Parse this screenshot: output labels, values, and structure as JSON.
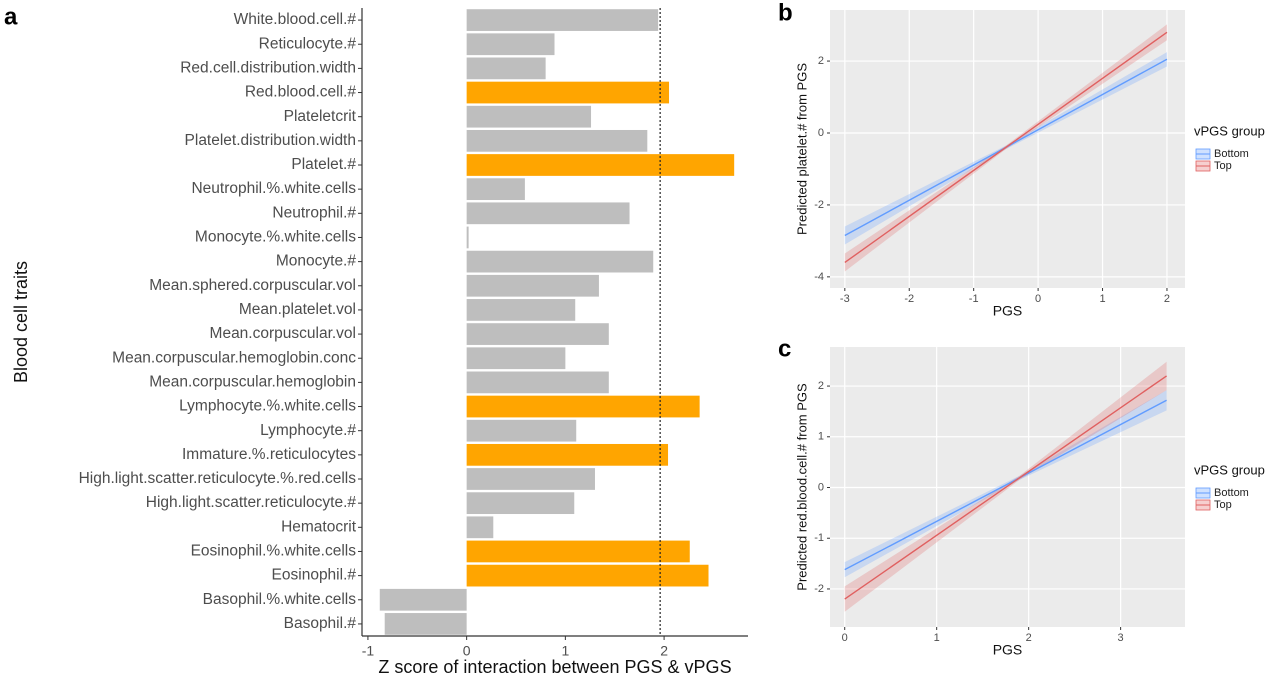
{
  "chart_data": [
    {
      "type": "bar",
      "orientation": "horizontal",
      "panel_label": "a",
      "xlabel": "Z score of interaction between PGS & vPGS",
      "ylabel": "Blood cell traits",
      "categories": [
        "White.blood.cell.#",
        "Reticulocyte.#",
        "Red.cell.distribution.width",
        "Red.blood.cell.#",
        "Plateletcrit",
        "Platelet.distribution.width",
        "Platelet.#",
        "Neutrophil.%.white.cells",
        "Neutrophil.#",
        "Monocyte.%.white.cells",
        "Monocyte.#",
        "Mean.sphered.corpuscular.vol",
        "Mean.platelet.vol",
        "Mean.corpuscular.vol",
        "Mean.corpuscular.hemoglobin.conc",
        "Mean.corpuscular.hemoglobin",
        "Lymphocyte.%.white.cells",
        "Lymphocyte.#",
        "Immature.%.reticulocytes",
        "High.light.scatter.reticulocyte.%.red.cells",
        "High.light.scatter.reticulocyte.#",
        "Hematocrit",
        "Eosinophil.%.white.cells",
        "Eosinophil.#",
        "Basophil.%.white.cells",
        "Basophil.#"
      ],
      "values": [
        1.94,
        0.89,
        0.8,
        2.05,
        1.26,
        1.83,
        2.71,
        0.59,
        1.65,
        0.02,
        1.89,
        1.34,
        1.1,
        1.44,
        1.0,
        1.44,
        2.36,
        1.11,
        2.04,
        1.3,
        1.09,
        0.27,
        2.26,
        2.45,
        -0.88,
        -0.83
      ],
      "colors": [
        "#bebebe",
        "#bebebe",
        "#bebebe",
        "#ffa500",
        "#bebebe",
        "#bebebe",
        "#ffa500",
        "#bebebe",
        "#bebebe",
        "#bebebe",
        "#bebebe",
        "#bebebe",
        "#bebebe",
        "#bebebe",
        "#bebebe",
        "#bebebe",
        "#ffa500",
        "#bebebe",
        "#ffa500",
        "#bebebe",
        "#bebebe",
        "#bebebe",
        "#ffa500",
        "#ffa500",
        "#bebebe",
        "#bebebe"
      ],
      "reference_line": 1.96,
      "xlim": [
        -1.06,
        2.85
      ],
      "xticks": [
        -1,
        0,
        1,
        2
      ]
    },
    {
      "type": "line",
      "panel_label": "b",
      "xlabel": "PGS",
      "ylabel": "Predicted platelet.# from PGS",
      "legend_title": "vPGS group",
      "x": [
        -3,
        -0.5,
        2
      ],
      "series": [
        {
          "name": "Bottom",
          "color": "#619cff",
          "values": [
            -2.85,
            -0.4,
            2.05
          ],
          "lower": [
            -3.1,
            -0.45,
            1.85
          ],
          "upper": [
            -2.6,
            -0.35,
            2.25
          ]
        },
        {
          "name": "Top",
          "color": "#e06060",
          "values": [
            -3.6,
            -0.4,
            2.8
          ],
          "lower": [
            -3.85,
            -0.45,
            2.58
          ],
          "upper": [
            -3.35,
            -0.35,
            3.02
          ]
        }
      ],
      "xlim": [
        -3.23,
        2.28
      ],
      "xticks": [
        -3,
        -2,
        -1,
        0,
        1,
        2
      ],
      "ylim": [
        -4.31,
        3.42
      ],
      "yticks": [
        -4,
        -2,
        0,
        2
      ],
      "grid": true
    },
    {
      "type": "line",
      "panel_label": "c",
      "xlabel": "PGS",
      "ylabel": "Predicted red.blood.cell.# from PGS",
      "legend_title": "vPGS group",
      "x": [
        0,
        1.9,
        3.5
      ],
      "series": [
        {
          "name": "Bottom",
          "color": "#619cff",
          "values": [
            -1.62,
            0.19,
            1.72
          ],
          "lower": [
            -1.77,
            0.15,
            1.52
          ],
          "upper": [
            -1.47,
            0.23,
            1.92
          ]
        },
        {
          "name": "Top",
          "color": "#e06060",
          "values": [
            -2.2,
            0.19,
            2.2
          ],
          "lower": [
            -2.45,
            0.15,
            1.92
          ],
          "upper": [
            -1.95,
            0.23,
            2.48
          ]
        }
      ],
      "xlim": [
        -0.16,
        3.7
      ],
      "xticks": [
        0,
        1,
        2,
        3
      ],
      "ylim": [
        -2.75,
        2.77
      ],
      "yticks": [
        -2,
        -1,
        0,
        1,
        2
      ],
      "grid": true
    }
  ]
}
